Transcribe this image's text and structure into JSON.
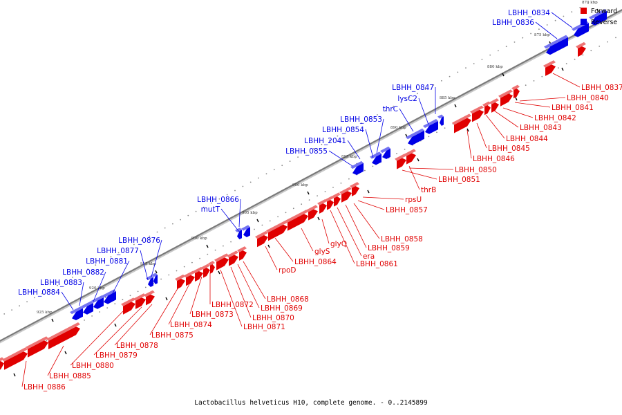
{
  "colors": {
    "forward": "#e00000",
    "reverse": "#0000e6",
    "backbone": "#888888"
  },
  "legend": [
    {
      "label": "Forward",
      "color": "#e00000"
    },
    {
      "label": "Reverse",
      "color": "#0000e6"
    }
  ],
  "caption": "Lactobacillus helveticus H10, complete genome. - 0..2145899",
  "kbp_ticks": [
    "870 kbp",
    "875 kbp",
    "880 kbp",
    "885 kbp",
    "890 kbp",
    "895 kbp",
    "900 kbp",
    "905 kbp",
    "910 kbp",
    "915 kbp",
    "920 kbp",
    "925 kbp"
  ],
  "forward_genes": [
    "LBHH_0837",
    "LBHH_0840",
    "LBHH_0841",
    "LBHH_0842",
    "LBHH_0843",
    "LBHH_0844",
    "LBHH_0845",
    "LBHH_0846",
    "LBHH_0850",
    "LBHH_0851",
    "thrB",
    "rpsU",
    "LBHH_0857",
    "LBHH_0858",
    "LBHH_0859",
    "era",
    "LBHH_0861",
    "glyQ",
    "glyS",
    "LBHH_0864",
    "rpoD",
    "LBHH_0868",
    "LBHH_0869",
    "LBHH_0870",
    "LBHH_0871",
    "LBHH_0872",
    "LBHH_0873",
    "LBHH_0874",
    "LBHH_0875",
    "LBHH_0878",
    "LBHH_0879",
    "LBHH_0880",
    "LBHH_0885",
    "LBHH_0886"
  ],
  "reverse_genes": [
    "LBHH_0834",
    "LBHH_0836",
    "LBHH_0847",
    "lysC2",
    "thrC",
    "LBHH_0853",
    "LBHH_0854",
    "LBHH_2041",
    "LBHH_0855",
    "LBHH_0866",
    "mutT",
    "LBHH_0876",
    "LBHH_0877",
    "LBHH_0881",
    "LBHH_0882",
    "LBHH_0883",
    "LBHH_0884"
  ]
}
